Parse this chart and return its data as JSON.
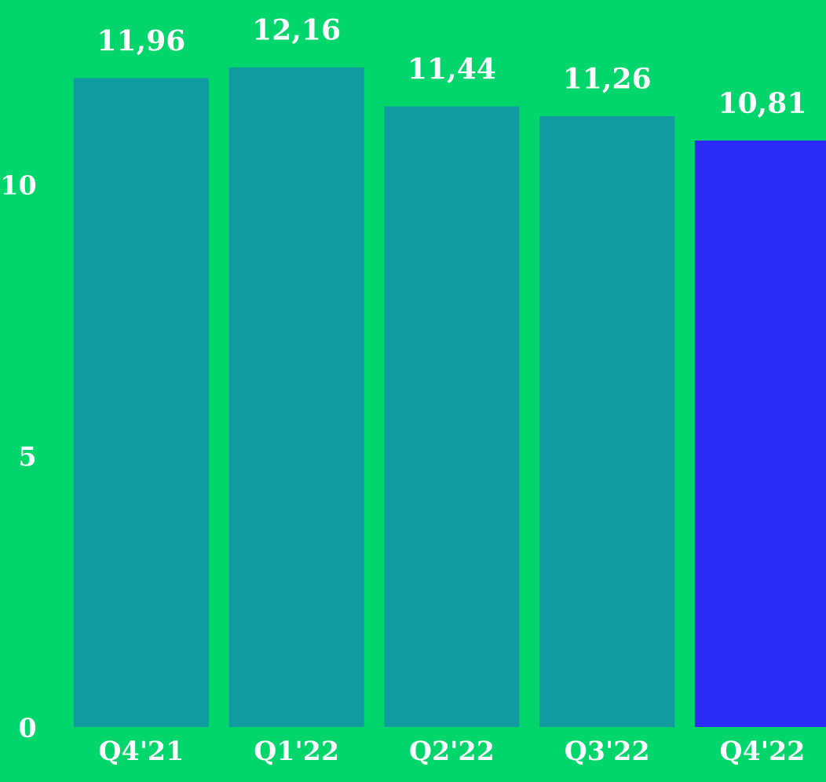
{
  "chart_data": {
    "type": "bar",
    "categories": [
      "Q4'21",
      "Q1'22",
      "Q2'22",
      "Q3'22",
      "Q4'22"
    ],
    "values": [
      11.96,
      12.16,
      11.44,
      11.26,
      10.81
    ],
    "colors": [
      "#0f9b9f",
      "#0f9b9f",
      "#0f9b9f",
      "#0f9b9f",
      "#2b2bf5"
    ],
    "value_labels": [
      "11,96",
      "12,16",
      "11,44",
      "11,26",
      "10,81"
    ],
    "ylim": [
      0,
      13.4
    ],
    "yticks": [
      0,
      5,
      10
    ],
    "grid": false,
    "legend": false
  }
}
